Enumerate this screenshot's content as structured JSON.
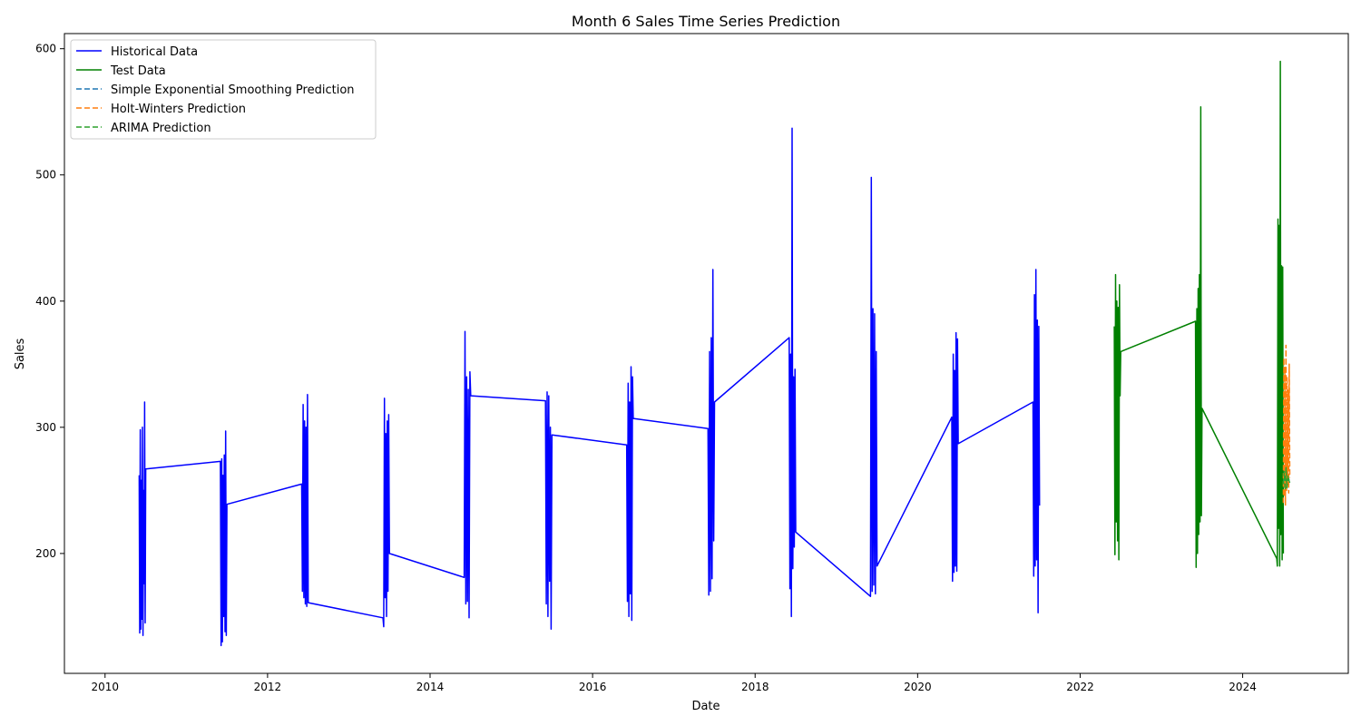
{
  "chart_data": {
    "type": "line",
    "title": "Month 6 Sales Time Series Prediction",
    "xlabel": "Date",
    "ylabel": "Sales",
    "xlim": [
      2009.5,
      2025.3
    ],
    "ylim": [
      105,
      612
    ],
    "x_ticks": [
      2010,
      2012,
      2014,
      2016,
      2018,
      2020,
      2022,
      2024
    ],
    "y_ticks": [
      200,
      300,
      400,
      500,
      600
    ],
    "grid": false,
    "legend_position": "top-left",
    "series": [
      {
        "name": "Historical Data",
        "color": "#0000ff",
        "style": "solid",
        "bursts": [
          {
            "x0": 2010.42,
            "x1": 2010.5,
            "values": [
              262,
              137,
              298,
              140,
              258,
              148,
              300,
              135,
              250,
              176,
              320,
              145,
              267
            ]
          },
          {
            "x0": 2011.42,
            "x1": 2011.5,
            "values": [
              273,
              127,
              275,
              130,
              262,
              150,
              278,
              138,
              297,
              135,
              239
            ]
          },
          {
            "x0": 2012.42,
            "x1": 2012.5,
            "values": [
              255,
              170,
              318,
              165,
              305,
              160,
              300,
              158,
              326,
              161
            ]
          },
          {
            "x0": 2013.42,
            "x1": 2013.5,
            "values": [
              149,
              142,
              323,
              165,
              295,
              150,
              305,
              170,
              310,
              200
            ]
          },
          {
            "x0": 2014.42,
            "x1": 2014.5,
            "values": [
              181,
              376,
              160,
              340,
              162,
              330,
              149,
              344,
              325
            ]
          },
          {
            "x0": 2015.42,
            "x1": 2015.5,
            "values": [
              321,
              160,
              328,
              150,
              325,
              178,
              300,
              140,
              294
            ]
          },
          {
            "x0": 2016.42,
            "x1": 2016.5,
            "values": [
              286,
              162,
              335,
              150,
              320,
              168,
              348,
              147,
              340,
              307
            ]
          },
          {
            "x0": 2017.42,
            "x1": 2017.5,
            "values": [
              299,
              167,
              360,
              170,
              371,
              180,
              425,
              210,
              320
            ]
          },
          {
            "x0": 2018.42,
            "x1": 2018.5,
            "values": [
              371,
              172,
              358,
              150,
              537,
              188,
              340,
              205,
              346,
              217
            ]
          },
          {
            "x0": 2019.42,
            "x1": 2019.5,
            "values": [
              166,
              498,
              170,
              394,
              175,
              390,
              168,
              360,
              190
            ]
          },
          {
            "x0": 2020.42,
            "x1": 2020.5,
            "values": [
              308,
              178,
              358,
              185,
              345,
              190,
              375,
              186,
              370,
              287
            ]
          },
          {
            "x0": 2021.42,
            "x1": 2021.5,
            "values": [
              320,
              182,
              405,
              190,
              425,
              195,
              385,
              153,
              380,
              238
            ]
          }
        ]
      },
      {
        "name": "Test Data",
        "color": "#008000",
        "style": "solid",
        "bursts": [
          {
            "x0": 2022.42,
            "x1": 2022.5,
            "values": [
              380,
              199,
              421,
              225,
              400,
              210,
              395,
              195,
              413,
              325,
              360
            ]
          },
          {
            "x0": 2023.42,
            "x1": 2023.5,
            "values": [
              384,
              189,
              394,
              200,
              410,
              215,
              421,
              225,
              554,
              230,
              315
            ]
          },
          {
            "x0": 2024.42,
            "x1": 2024.5,
            "values": [
              196,
              190,
              465,
              220,
              460,
              190,
              590,
              215,
              428,
              195,
              427,
              200
            ]
          }
        ]
      },
      {
        "name": "Simple Exponential Smoothing Prediction",
        "color": "#1f77b4",
        "style": "dashed",
        "bursts": [
          {
            "x0": 2024.5,
            "x1": 2024.58,
            "values": [
              262,
              258,
              260,
              257,
              261,
              259,
              258,
              260
            ]
          }
        ]
      },
      {
        "name": "Holt-Winters Prediction",
        "color": "#ff7f0e",
        "style": "dashed",
        "bursts": [
          {
            "x0": 2024.5,
            "x1": 2024.58,
            "values": [
              240,
              355,
              245,
              348,
              238,
              365,
              250,
              340,
              255,
              330,
              248,
              350,
              260
            ]
          }
        ]
      },
      {
        "name": "ARIMA Prediction",
        "color": "#2ca02c",
        "style": "dashed",
        "bursts": [
          {
            "x0": 2024.5,
            "x1": 2024.58,
            "values": [
              255,
              265,
              250,
              268,
              252,
              262,
              258,
              256
            ]
          }
        ]
      }
    ]
  }
}
